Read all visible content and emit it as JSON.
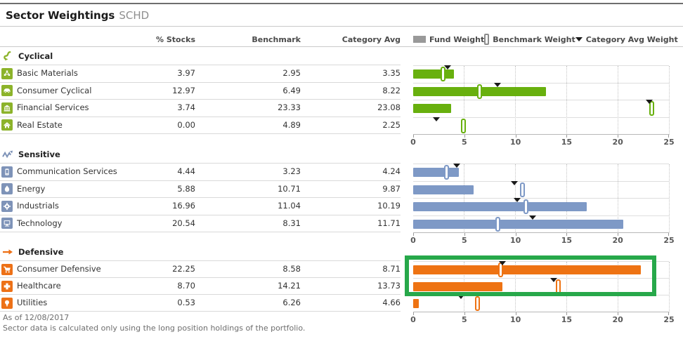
{
  "header": {
    "title": "Sector Weightings",
    "ticker": "SCHD"
  },
  "columns": {
    "stocks": "% Stocks",
    "benchmark": "Benchmark",
    "category_avg": "Category Avg"
  },
  "legend": {
    "fund": "Fund Weight",
    "benchmark": "Benchmark Weight",
    "category_avg": "Category Avg Weight",
    "fund_swatch_color": "#999999",
    "benchmark_marker_border": "#8c8c8c",
    "triangle_color": "#1a1a1a"
  },
  "footer": {
    "as_of": "As of 12/08/2017",
    "note": "Sector data is calculated only using the long position holdings of the portfolio."
  },
  "annotation": {
    "type": "highlight-box",
    "color": "#27a84a"
  },
  "chart_data": {
    "type": "bar",
    "title": "Sector Weightings SCHD",
    "xlim": [
      0,
      25
    ],
    "ticks": [
      0,
      5,
      10,
      15,
      20,
      25
    ],
    "grid": "dotted-vertical",
    "legend": [
      "Fund Weight",
      "Benchmark Weight",
      "Category Avg Weight"
    ],
    "groups": [
      {
        "name": "Cyclical",
        "icon": "cyclical-icon",
        "icon_color": "#8cb32a",
        "bar_color": "#68b00e",
        "rows": [
          {
            "sector": "Basic Materials",
            "icon": "basic-materials-icon",
            "stocks": 3.97,
            "benchmark": 2.95,
            "category_avg": 3.35
          },
          {
            "sector": "Consumer Cyclical",
            "icon": "consumer-cyclical-icon",
            "stocks": 12.97,
            "benchmark": 6.49,
            "category_avg": 8.22
          },
          {
            "sector": "Financial Services",
            "icon": "financial-services-icon",
            "stocks": 3.74,
            "benchmark": 23.33,
            "category_avg": 23.08
          },
          {
            "sector": "Real Estate",
            "icon": "real-estate-icon",
            "stocks": 0.0,
            "benchmark": 4.89,
            "category_avg": 2.25
          }
        ]
      },
      {
        "name": "Sensitive",
        "icon": "sensitive-icon",
        "icon_color": "#7e93b8",
        "bar_color": "#7e99c6",
        "rows": [
          {
            "sector": "Communication Services",
            "icon": "communication-services-icon",
            "stocks": 4.44,
            "benchmark": 3.23,
            "category_avg": 4.24
          },
          {
            "sector": "Energy",
            "icon": "energy-icon",
            "stocks": 5.88,
            "benchmark": 10.71,
            "category_avg": 9.87
          },
          {
            "sector": "Industrials",
            "icon": "industrials-icon",
            "stocks": 16.96,
            "benchmark": 11.04,
            "category_avg": 10.19
          },
          {
            "sector": "Technology",
            "icon": "technology-icon",
            "stocks": 20.54,
            "benchmark": 8.31,
            "category_avg": 11.71
          }
        ]
      },
      {
        "name": "Defensive",
        "icon": "defensive-icon",
        "icon_color": "#ed7117",
        "bar_color": "#ee7313",
        "rows": [
          {
            "sector": "Consumer Defensive",
            "icon": "consumer-defensive-icon",
            "stocks": 22.25,
            "benchmark": 8.58,
            "category_avg": 8.71
          },
          {
            "sector": "Healthcare",
            "icon": "healthcare-icon",
            "stocks": 8.7,
            "benchmark": 14.21,
            "category_avg": 13.73
          },
          {
            "sector": "Utilities",
            "icon": "utilities-icon",
            "stocks": 0.53,
            "benchmark": 6.26,
            "category_avg": 4.66
          }
        ]
      }
    ]
  }
}
